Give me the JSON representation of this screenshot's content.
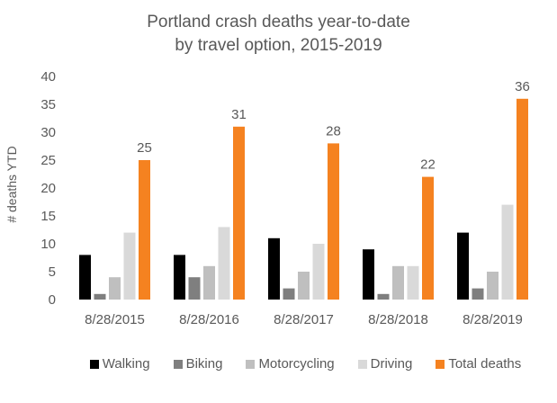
{
  "chart_data": {
    "type": "bar",
    "title": "Portland crash deaths year-to-date",
    "subtitle": "by travel option, 2015-2019",
    "xlabel": "",
    "ylabel": "# deaths YTD",
    "ylim": [
      0,
      40
    ],
    "yticks": [
      0,
      5,
      10,
      15,
      20,
      25,
      30,
      35,
      40
    ],
    "grid": false,
    "legend_position": "bottom",
    "categories": [
      "8/28/2015",
      "8/28/2016",
      "8/28/2017",
      "8/28/2018",
      "8/28/2019"
    ],
    "series": [
      {
        "name": "Walking",
        "color": "#000000",
        "values": [
          8,
          8,
          11,
          9,
          12
        ]
      },
      {
        "name": "Biking",
        "color": "#7f7f7f",
        "values": [
          1,
          4,
          2,
          1,
          2
        ]
      },
      {
        "name": "Motorcycling",
        "color": "#bfbfbf",
        "values": [
          4,
          6,
          5,
          6,
          5
        ]
      },
      {
        "name": "Driving",
        "color": "#d9d9d9",
        "values": [
          12,
          13,
          10,
          6,
          17
        ]
      },
      {
        "name": "Total deaths",
        "color": "#f58220",
        "values": [
          25,
          31,
          28,
          22,
          36
        ],
        "data_labels": true
      }
    ]
  }
}
